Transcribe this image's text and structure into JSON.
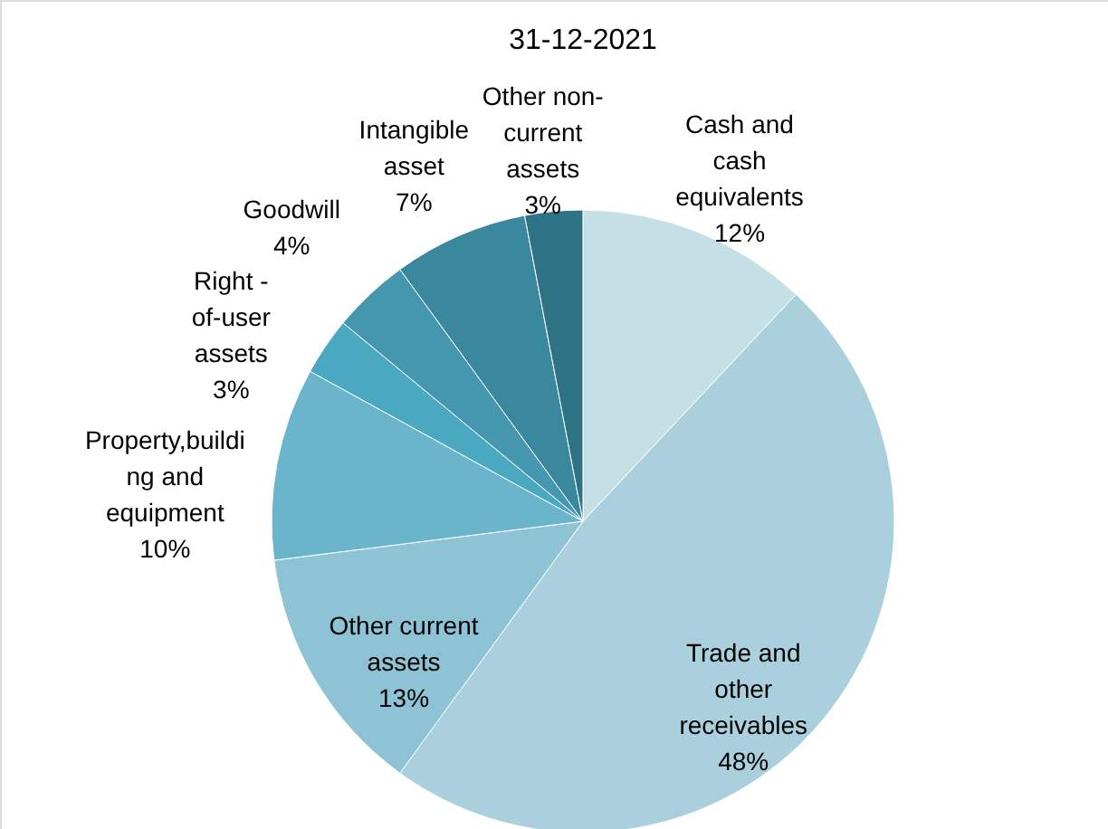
{
  "chart_data": {
    "type": "pie",
    "title": "31-12-2021",
    "categories": [
      "Cash and\ncash\nequivalents",
      "Trade and\nother\nreceivables",
      "Other current\nassets",
      "Property,buildi\nng and\nequipment",
      "Right -\nof-user\nassets",
      "Goodwill",
      "Intangible\nasset",
      "Other non-\ncurrent\nassets"
    ],
    "values": [
      12,
      48,
      13,
      10,
      3,
      4,
      7,
      3
    ],
    "colors": [
      "#c5dfe6",
      "#a9d0dc",
      "#8dc3d5",
      "#6bb5cc",
      "#4aa8c0",
      "#4597af",
      "#3a889e",
      "#2e7285"
    ],
    "value_labels": [
      "12%",
      "48%",
      "13%",
      "10%",
      "3%",
      "4%",
      "7%",
      "3%"
    ],
    "legend": false
  }
}
